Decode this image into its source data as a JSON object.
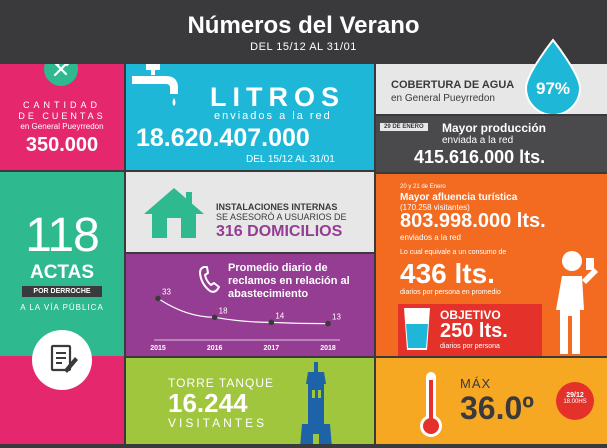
{
  "header": {
    "title": "Números del Verano",
    "subtitle": "DEL 15/12 AL 31/01"
  },
  "cuentas": {
    "line1": "CANTIDAD",
    "line2": "DE CUENTAS",
    "line3": "en General Pueyrredon",
    "value": "350.000"
  },
  "litros": {
    "title": "LITROS",
    "sub": "enviados a la red",
    "value": "18.620.407.000",
    "period": "DEL 15/12 AL 31/01"
  },
  "cobertura": {
    "title": "COBERTURA DE AGUA",
    "sub": "en General Pueyrredon",
    "percent": "97%",
    "percent_value": 97
  },
  "produccion": {
    "date": "29 DE ENERO",
    "title": "Mayor producción",
    "sub": "enviada a la red",
    "value": "415.616.000 lts."
  },
  "actas": {
    "number": "118",
    "label": "ACTAS",
    "badge": "POR DERROCHE",
    "sub": "A LA VÍA PÚBLICA"
  },
  "instalaciones": {
    "line1": "INSTALACIONES INTERNAS",
    "line2": "SE ASESORÓ A USUARIOS DE",
    "value": "316 DOMICILIOS"
  },
  "turistica": {
    "date": "20 y 21 de Enero",
    "title": "Mayor afluencia turística",
    "visitors": "(170.258 visitantes)",
    "value": "803.998.000 lts.",
    "sub": "enviados a la red",
    "equiv": "Lo cual equivale a un consumo de",
    "consumo": "436 lts.",
    "consumo_sub": "diarios por persona en promedio"
  },
  "reclamos": {
    "title": "Promedio diario de reclamos en relación al abastecimiento"
  },
  "objetivo": {
    "label": "OBJETIVO",
    "value": "250 lts.",
    "sub": "diarios por persona"
  },
  "torre": {
    "line1": "TORRE TANQUE",
    "value": "16.244",
    "line2": "VISITANTES"
  },
  "temperatura": {
    "label": "MÁX",
    "value": "36.0º",
    "date": "29/12",
    "time": "18.00HS"
  },
  "colors": {
    "magenta": "#e5286e",
    "cyan": "#1fb7d8",
    "green": "#2fb98f",
    "purple": "#953c93",
    "lime": "#9fc63c",
    "orange": "#f26b21",
    "gray": "#4a4a4d",
    "light": "#e7e7e7",
    "red": "#e4322b",
    "yellow": "#f7a823"
  },
  "chart_data": {
    "type": "line",
    "x": [
      "2015",
      "2016",
      "2017",
      "2018"
    ],
    "values": [
      33,
      18,
      14,
      13
    ],
    "title": "Promedio diario de reclamos en relación al abastecimiento"
  }
}
